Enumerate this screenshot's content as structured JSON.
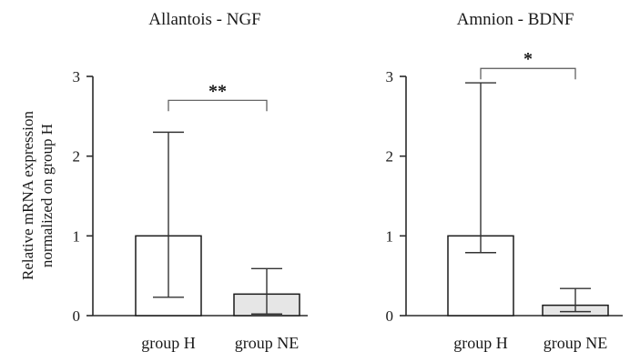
{
  "ylabel_lines": [
    "Relative mRNA expression",
    "normalized on group H"
  ],
  "chart_data": [
    {
      "type": "bar",
      "title": "Allantois - NGF",
      "categories": [
        "group H",
        "group NE"
      ],
      "values": [
        1.0,
        0.27
      ],
      "err_low": [
        0.23,
        0.02
      ],
      "err_high": [
        2.3,
        0.59
      ],
      "bar_colors": [
        "#ffffff",
        "#e6e6e6"
      ],
      "ylim": [
        0,
        3
      ],
      "yticks": [
        0,
        1,
        2,
        3
      ],
      "significance": {
        "label": "**",
        "height": 2.7
      },
      "grid": false,
      "legend": "none"
    },
    {
      "type": "bar",
      "title": "Amnion - BDNF",
      "categories": [
        "group H",
        "group NE"
      ],
      "values": [
        1.0,
        0.13
      ],
      "err_low": [
        0.79,
        0.05
      ],
      "err_high": [
        2.92,
        0.34
      ],
      "bar_colors": [
        "#ffffff",
        "#e6e6e6"
      ],
      "ylim": [
        0,
        3
      ],
      "yticks": [
        0,
        1,
        2,
        3
      ],
      "significance": {
        "label": "*",
        "height": 3.1
      },
      "grid": false,
      "legend": "none"
    }
  ]
}
